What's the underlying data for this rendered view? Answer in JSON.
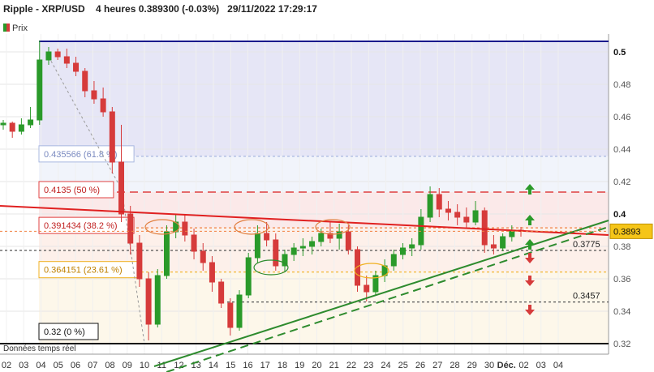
{
  "header": {
    "instrument": "Ripple - XRP/USD",
    "timeframe": "4 heures",
    "price": "0.389300",
    "change": "(-0.03%)",
    "datetime": "29/11/2022 17:29:17"
  },
  "legend": {
    "label": "Prix"
  },
  "footer_note": "Données temps réel",
  "colors": {
    "up": "#2a9a2a",
    "down": "#d63b3b",
    "trendline": "#e02020",
    "support": "#2e8b2e",
    "fib_top": "#1a1a8c"
  },
  "chart_data": {
    "type": "candlestick",
    "title": "",
    "xlabel": "",
    "ylabel": "",
    "ylim": [
      0.32,
      0.51
    ],
    "y_ticks": [
      0.5,
      0.48,
      0.46,
      0.44,
      0.42,
      0.4,
      0.38,
      0.36,
      0.34,
      0.32
    ],
    "x_ticks": [
      "02",
      "03",
      "04",
      "05",
      "06",
      "07",
      "08",
      "09",
      "10",
      "11",
      "12",
      "13",
      "14",
      "15",
      "16",
      "17",
      "18",
      "19",
      "20",
      "21",
      "22",
      "23",
      "24",
      "25",
      "26",
      "27",
      "28",
      "29",
      "30",
      "Déc.",
      "02",
      "03",
      "04"
    ],
    "current_price": 0.3893,
    "fib_levels": [
      {
        "label": "0.435566 (61.8 %)",
        "value": 0.435566
      },
      {
        "label": "0.4135 (50 %)",
        "value": 0.4135
      },
      {
        "label": "0.391434 (38.2 %)",
        "value": 0.391434
      },
      {
        "label": "0.364151 (23.61 %)",
        "value": 0.364151
      },
      {
        "label": "0.32 (0 %)",
        "value": 0.32
      }
    ],
    "top_level": 0.5065,
    "price_levels": [
      {
        "label": "0.3775",
        "value": 0.3775
      },
      {
        "label": "0.3457",
        "value": 0.3457
      }
    ],
    "candles": [
      {
        "d": "02",
        "o": 0.455,
        "h": 0.458,
        "l": 0.452,
        "c": 0.456
      },
      {
        "d": "03",
        "o": 0.456,
        "h": 0.457,
        "l": 0.447,
        "c": 0.451
      },
      {
        "d": "03",
        "o": 0.451,
        "h": 0.459,
        "l": 0.449,
        "c": 0.455
      },
      {
        "d": "04",
        "o": 0.455,
        "h": 0.466,
        "l": 0.453,
        "c": 0.458
      },
      {
        "d": "04",
        "o": 0.458,
        "h": 0.507,
        "l": 0.455,
        "c": 0.495
      },
      {
        "d": "05",
        "o": 0.495,
        "h": 0.503,
        "l": 0.492,
        "c": 0.5
      },
      {
        "d": "05",
        "o": 0.5,
        "h": 0.502,
        "l": 0.495,
        "c": 0.497
      },
      {
        "d": "06",
        "o": 0.497,
        "h": 0.502,
        "l": 0.49,
        "c": 0.493
      },
      {
        "d": "06",
        "o": 0.493,
        "h": 0.497,
        "l": 0.485,
        "c": 0.488
      },
      {
        "d": "07",
        "o": 0.488,
        "h": 0.49,
        "l": 0.472,
        "c": 0.476
      },
      {
        "d": "07",
        "o": 0.476,
        "h": 0.482,
        "l": 0.468,
        "c": 0.471
      },
      {
        "d": "08",
        "o": 0.471,
        "h": 0.478,
        "l": 0.46,
        "c": 0.463
      },
      {
        "d": "08",
        "o": 0.463,
        "h": 0.466,
        "l": 0.425,
        "c": 0.432
      },
      {
        "d": "09",
        "o": 0.432,
        "h": 0.455,
        "l": 0.395,
        "c": 0.4
      },
      {
        "d": "09",
        "o": 0.4,
        "h": 0.405,
        "l": 0.375,
        "c": 0.382
      },
      {
        "d": "10",
        "o": 0.382,
        "h": 0.387,
        "l": 0.355,
        "c": 0.36
      },
      {
        "d": "10",
        "o": 0.36,
        "h": 0.364,
        "l": 0.322,
        "c": 0.332
      },
      {
        "d": "10",
        "o": 0.332,
        "h": 0.366,
        "l": 0.33,
        "c": 0.362
      },
      {
        "d": "11",
        "o": 0.362,
        "h": 0.393,
        "l": 0.36,
        "c": 0.389
      },
      {
        "d": "11",
        "o": 0.389,
        "h": 0.4,
        "l": 0.385,
        "c": 0.395
      },
      {
        "d": "11",
        "o": 0.395,
        "h": 0.4,
        "l": 0.383,
        "c": 0.387
      },
      {
        "d": "12",
        "o": 0.387,
        "h": 0.391,
        "l": 0.372,
        "c": 0.377
      },
      {
        "d": "12",
        "o": 0.377,
        "h": 0.382,
        "l": 0.365,
        "c": 0.37
      },
      {
        "d": "13",
        "o": 0.37,
        "h": 0.374,
        "l": 0.352,
        "c": 0.358
      },
      {
        "d": "13",
        "o": 0.358,
        "h": 0.36,
        "l": 0.342,
        "c": 0.345
      },
      {
        "d": "14",
        "o": 0.345,
        "h": 0.348,
        "l": 0.325,
        "c": 0.33
      },
      {
        "d": "14",
        "o": 0.33,
        "h": 0.353,
        "l": 0.328,
        "c": 0.35
      },
      {
        "d": "15",
        "o": 0.35,
        "h": 0.376,
        "l": 0.348,
        "c": 0.373
      },
      {
        "d": "15",
        "o": 0.373,
        "h": 0.393,
        "l": 0.37,
        "c": 0.388
      },
      {
        "d": "16",
        "o": 0.388,
        "h": 0.395,
        "l": 0.38,
        "c": 0.384
      },
      {
        "d": "16",
        "o": 0.384,
        "h": 0.388,
        "l": 0.365,
        "c": 0.368
      },
      {
        "d": "17",
        "o": 0.368,
        "h": 0.378,
        "l": 0.364,
        "c": 0.375
      },
      {
        "d": "17",
        "o": 0.375,
        "h": 0.382,
        "l": 0.371,
        "c": 0.379
      },
      {
        "d": "18",
        "o": 0.379,
        "h": 0.385,
        "l": 0.374,
        "c": 0.38
      },
      {
        "d": "18",
        "o": 0.38,
        "h": 0.386,
        "l": 0.375,
        "c": 0.383
      },
      {
        "d": "19",
        "o": 0.383,
        "h": 0.391,
        "l": 0.38,
        "c": 0.388
      },
      {
        "d": "19",
        "o": 0.388,
        "h": 0.395,
        "l": 0.382,
        "c": 0.385
      },
      {
        "d": "20",
        "o": 0.385,
        "h": 0.394,
        "l": 0.378,
        "c": 0.389
      },
      {
        "d": "20",
        "o": 0.389,
        "h": 0.393,
        "l": 0.375,
        "c": 0.378
      },
      {
        "d": "21",
        "o": 0.378,
        "h": 0.38,
        "l": 0.352,
        "c": 0.356
      },
      {
        "d": "21",
        "o": 0.356,
        "h": 0.362,
        "l": 0.346,
        "c": 0.352
      },
      {
        "d": "22",
        "o": 0.352,
        "h": 0.365,
        "l": 0.35,
        "c": 0.362
      },
      {
        "d": "22",
        "o": 0.362,
        "h": 0.372,
        "l": 0.358,
        "c": 0.368
      },
      {
        "d": "23",
        "o": 0.368,
        "h": 0.378,
        "l": 0.365,
        "c": 0.375
      },
      {
        "d": "23",
        "o": 0.375,
        "h": 0.382,
        "l": 0.372,
        "c": 0.379
      },
      {
        "d": "24",
        "o": 0.379,
        "h": 0.385,
        "l": 0.374,
        "c": 0.381
      },
      {
        "d": "24",
        "o": 0.381,
        "h": 0.403,
        "l": 0.378,
        "c": 0.398
      },
      {
        "d": "25",
        "o": 0.398,
        "h": 0.417,
        "l": 0.395,
        "c": 0.412
      },
      {
        "d": "25",
        "o": 0.412,
        "h": 0.416,
        "l": 0.398,
        "c": 0.403
      },
      {
        "d": "26",
        "o": 0.403,
        "h": 0.408,
        "l": 0.396,
        "c": 0.401
      },
      {
        "d": "26",
        "o": 0.401,
        "h": 0.406,
        "l": 0.393,
        "c": 0.398
      },
      {
        "d": "27",
        "o": 0.398,
        "h": 0.404,
        "l": 0.391,
        "c": 0.395
      },
      {
        "d": "27",
        "o": 0.395,
        "h": 0.408,
        "l": 0.393,
        "c": 0.402
      },
      {
        "d": "28",
        "o": 0.402,
        "h": 0.404,
        "l": 0.376,
        "c": 0.381
      },
      {
        "d": "28",
        "o": 0.381,
        "h": 0.387,
        "l": 0.375,
        "c": 0.379
      },
      {
        "d": "29",
        "o": 0.379,
        "h": 0.388,
        "l": 0.377,
        "c": 0.386
      },
      {
        "d": "29",
        "o": 0.386,
        "h": 0.393,
        "l": 0.383,
        "c": 0.39
      },
      {
        "d": "30",
        "o": 0.39,
        "h": 0.392,
        "l": 0.386,
        "c": 0.3893
      }
    ],
    "annotations": {
      "arrows_up": [
        0.415,
        0.396,
        0.381
      ],
      "arrows_down": [
        0.373,
        0.359,
        0.341
      ]
    }
  }
}
